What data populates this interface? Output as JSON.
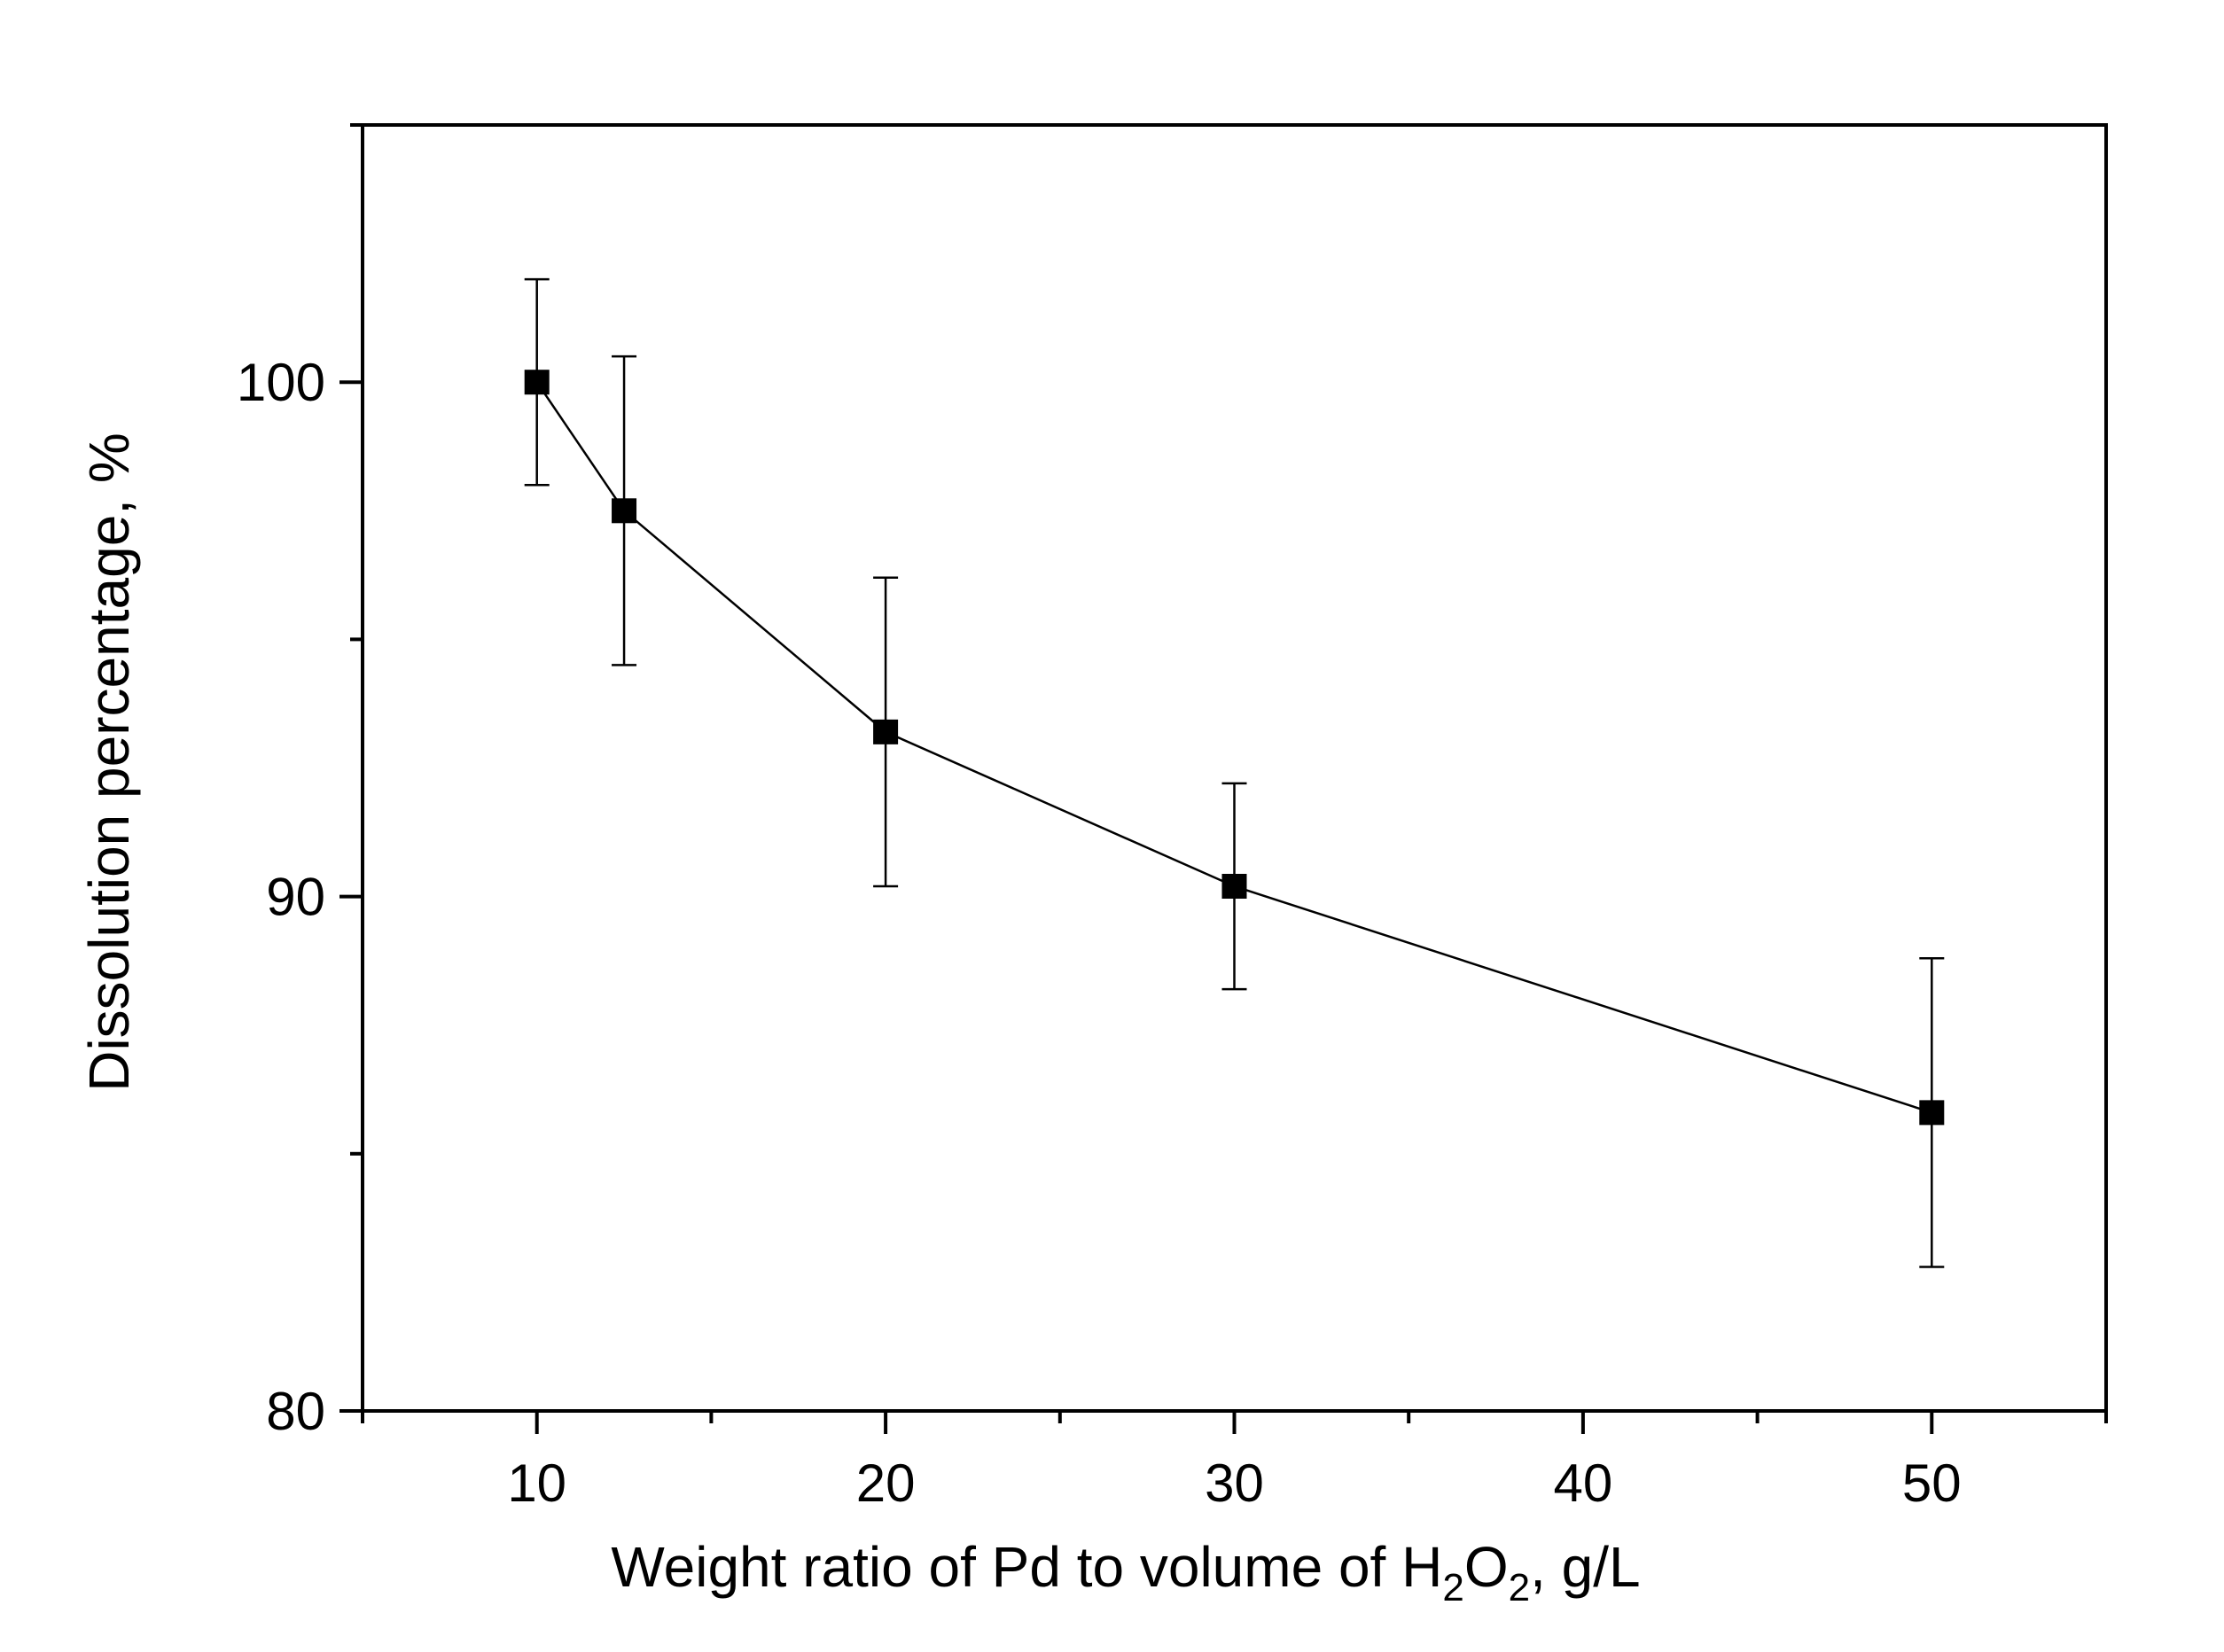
{
  "chart_data": {
    "type": "scatter",
    "title": "",
    "xlabel": {
      "prefix": "Weight  ratio of Pd to volume of H",
      "sub1": "2",
      "mid": "O",
      "sub2": "2",
      "suffix": ", g/L"
    },
    "ylabel": "Dissolution percentage, %",
    "xlim": [
      5,
      55
    ],
    "ylim": [
      80,
      105
    ],
    "x_major_ticks": [
      10,
      20,
      30,
      40,
      50
    ],
    "x_minor_ticks": [
      5,
      15,
      25,
      35,
      45,
      55
    ],
    "y_major_ticks": [
      80,
      90,
      100
    ],
    "y_minor_ticks": [
      85,
      95,
      105
    ],
    "x_tick_labels": [
      "10",
      "20",
      "30",
      "40",
      "50"
    ],
    "y_tick_labels": [
      "80",
      "90",
      "100"
    ],
    "marker": "square",
    "connected": true,
    "series": [
      {
        "name": "Dissolution percentage",
        "x": [
          10,
          12.5,
          20,
          30,
          50
        ],
        "y": [
          100,
          97.5,
          93.2,
          90.2,
          85.8
        ],
        "error": [
          2.0,
          3.0,
          3.0,
          2.0,
          3.0
        ]
      }
    ]
  }
}
